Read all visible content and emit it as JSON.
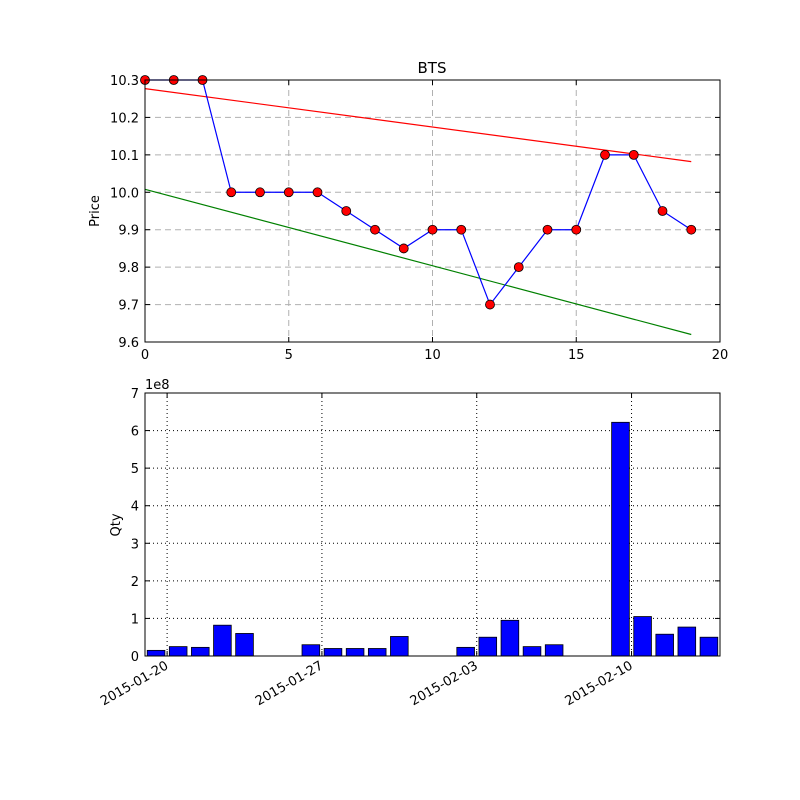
{
  "chart_data": [
    {
      "type": "line",
      "title": "BTS",
      "xlabel": "",
      "ylabel": "Price",
      "xlim": [
        0,
        20
      ],
      "ylim": [
        9.6,
        10.3
      ],
      "x_ticks": [
        0,
        5,
        10,
        15,
        20
      ],
      "y_ticks": [
        9.6,
        9.7,
        9.8,
        9.9,
        10.0,
        10.1,
        10.2,
        10.3
      ],
      "x_tick_labels": [
        "0",
        "5",
        "10",
        "15",
        "20"
      ],
      "y_tick_labels": [
        "9.6",
        "9.7",
        "9.8",
        "9.9",
        "10.0",
        "10.1",
        "10.2",
        "10.3"
      ],
      "grid": true,
      "series": [
        {
          "kind": "line-with-markers",
          "color": "#0000ff",
          "marker_color": "#ff0000",
          "x": [
            0,
            1,
            2,
            3,
            4,
            5,
            6,
            7,
            8,
            9,
            10,
            11,
            12,
            13,
            14,
            15,
            16,
            17,
            18,
            19
          ],
          "values": [
            10.3,
            10.3,
            10.3,
            10.0,
            10.0,
            10.0,
            10.0,
            9.95,
            9.9,
            9.85,
            9.9,
            9.9,
            9.7,
            9.8,
            9.9,
            9.9,
            10.1,
            10.1,
            9.95,
            9.9
          ]
        },
        {
          "kind": "trend-line",
          "color": "#ff0000",
          "x": [
            0,
            19
          ],
          "values": [
            10.277,
            10.082
          ]
        },
        {
          "kind": "trend-line",
          "color": "#008000",
          "x": [
            0,
            19
          ],
          "values": [
            10.008,
            9.62
          ]
        }
      ]
    },
    {
      "type": "bar",
      "title": "",
      "xlabel": "",
      "ylabel": "Qty",
      "scale_label": "1e8",
      "bar_color": "#0000ff",
      "xlim": [
        0,
        26
      ],
      "ylim": [
        0,
        7
      ],
      "y_ticks": [
        0,
        1,
        2,
        3,
        4,
        5,
        6,
        7
      ],
      "y_tick_labels": [
        "0",
        "1",
        "2",
        "3",
        "4",
        "5",
        "6",
        "7"
      ],
      "x_ticks": [
        {
          "pos": 1,
          "label": "2015-01-20"
        },
        {
          "pos": 8,
          "label": "2015-01-27"
        },
        {
          "pos": 15,
          "label": "2015-02-03"
        },
        {
          "pos": 22,
          "label": "2015-02-10"
        }
      ],
      "grid": true,
      "bars": [
        {
          "x": 0,
          "value": 0.15
        },
        {
          "x": 1,
          "value": 0.25
        },
        {
          "x": 2,
          "value": 0.23
        },
        {
          "x": 3,
          "value": 0.82
        },
        {
          "x": 4,
          "value": 0.6
        },
        {
          "x": 7,
          "value": 0.3
        },
        {
          "x": 8,
          "value": 0.2
        },
        {
          "x": 9,
          "value": 0.2
        },
        {
          "x": 10,
          "value": 0.2
        },
        {
          "x": 11,
          "value": 0.52
        },
        {
          "x": 14,
          "value": 0.23
        },
        {
          "x": 15,
          "value": 0.5
        },
        {
          "x": 16,
          "value": 0.95
        },
        {
          "x": 17,
          "value": 0.25
        },
        {
          "x": 18,
          "value": 0.3
        },
        {
          "x": 21,
          "value": 6.22
        },
        {
          "x": 22,
          "value": 1.05
        },
        {
          "x": 23,
          "value": 0.58
        },
        {
          "x": 24,
          "value": 0.77
        },
        {
          "x": 25,
          "value": 0.5
        }
      ]
    }
  ]
}
